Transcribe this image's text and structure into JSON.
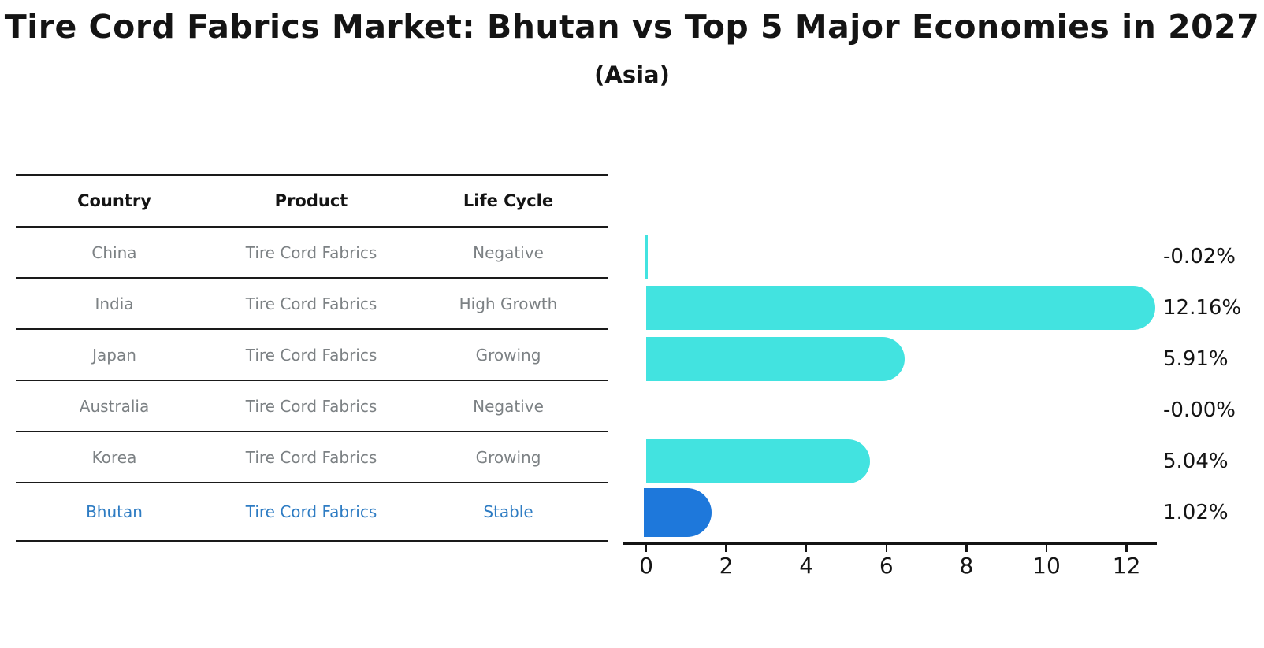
{
  "title": "Tire Cord Fabrics Market: Bhutan vs Top 5 Major Economies in 2027",
  "subtitle": "(Asia)",
  "table": {
    "headers": [
      "Country",
      "Product",
      "Life Cycle"
    ],
    "rows": [
      {
        "country": "China",
        "product": "Tire Cord Fabrics",
        "life_cycle": "Negative",
        "highlight": false
      },
      {
        "country": "India",
        "product": "Tire Cord Fabrics",
        "life_cycle": "High Growth",
        "highlight": false
      },
      {
        "country": "Japan",
        "product": "Tire Cord Fabrics",
        "life_cycle": "Growing",
        "highlight": false
      },
      {
        "country": "Australia",
        "product": "Tire Cord Fabrics",
        "life_cycle": "Negative",
        "highlight": false
      },
      {
        "country": "Korea",
        "product": "Tire Cord Fabrics",
        "life_cycle": "Growing",
        "highlight": false
      },
      {
        "country": "Bhutan",
        "product": "Tire Cord Fabrics",
        "life_cycle": "Stable",
        "highlight": true
      }
    ]
  },
  "chart_data": {
    "type": "bar",
    "orientation": "horizontal",
    "categories": [
      "China",
      "India",
      "Japan",
      "Australia",
      "Korea",
      "Bhutan"
    ],
    "values": [
      -0.02,
      12.16,
      5.91,
      -0.0,
      5.04,
      1.02
    ],
    "value_labels": [
      "-0.02%",
      "12.16%",
      "5.91%",
      "-0.00%",
      "5.04%",
      "1.02%"
    ],
    "x_ticks": [
      0,
      2,
      4,
      6,
      8,
      10,
      12
    ],
    "xlim": [
      -0.6,
      12.76
    ],
    "grid": false,
    "legend": null,
    "bar_color": "#42E3E0",
    "highlight_bar_color": "#1E78DB",
    "highlight_text_color": "#2E7CC3",
    "row_text_color": "#7c8184",
    "highlight_index": 5
  }
}
